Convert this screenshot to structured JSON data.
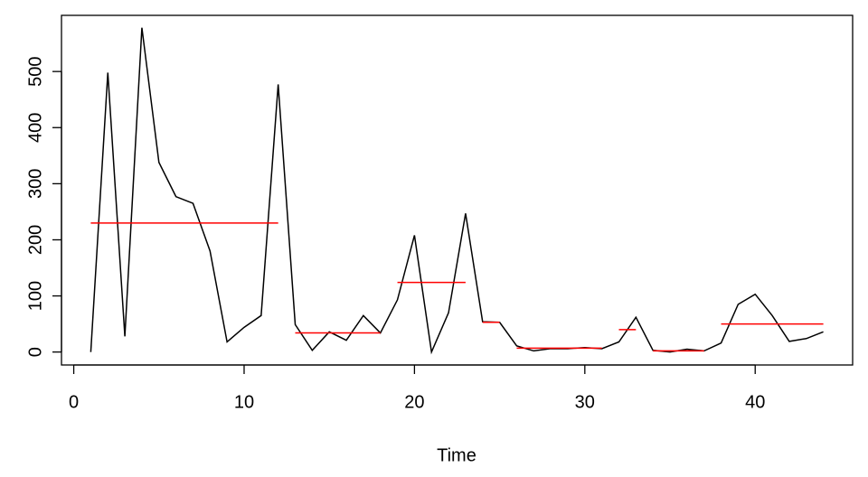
{
  "chart_data": {
    "type": "line",
    "xlabel": "Time",
    "x": [
      1,
      2,
      3,
      4,
      5,
      6,
      7,
      8,
      9,
      10,
      11,
      12,
      13,
      14,
      15,
      16,
      17,
      18,
      19,
      20,
      21,
      22,
      23,
      24,
      25,
      26,
      27,
      28,
      29,
      30,
      31,
      32,
      33,
      34,
      35,
      36,
      37,
      38,
      39,
      40,
      41,
      42,
      43,
      44
    ],
    "values": [
      0,
      498,
      28,
      578,
      338,
      277,
      265,
      180,
      18,
      44,
      65,
      477,
      49,
      3,
      36,
      21,
      65,
      34,
      93,
      208,
      0,
      70,
      247,
      54,
      53,
      11,
      2,
      6,
      6,
      8,
      6,
      18,
      62,
      3,
      0,
      5,
      2,
      16,
      85,
      103,
      65,
      19,
      24,
      36
    ],
    "color": "#000000",
    "segments": [
      {
        "start": 1,
        "end": 12,
        "value": 230
      },
      {
        "start": 13,
        "end": 18,
        "value": 34
      },
      {
        "start": 19,
        "end": 23,
        "value": 124
      },
      {
        "start": 24,
        "end": 25,
        "value": 53
      },
      {
        "start": 26,
        "end": 31,
        "value": 7
      },
      {
        "start": 32,
        "end": 33,
        "value": 40
      },
      {
        "start": 34,
        "end": 37,
        "value": 2
      },
      {
        "start": 38,
        "end": 44,
        "value": 50
      }
    ],
    "segment_color": "#ff0000",
    "xlim": [
      -0.72,
      45.72
    ],
    "ylim": [
      -23.08,
      600.08
    ],
    "xticks": [
      0,
      10,
      20,
      30,
      40
    ],
    "yticks": [
      0,
      100,
      200,
      300,
      400,
      500
    ]
  }
}
